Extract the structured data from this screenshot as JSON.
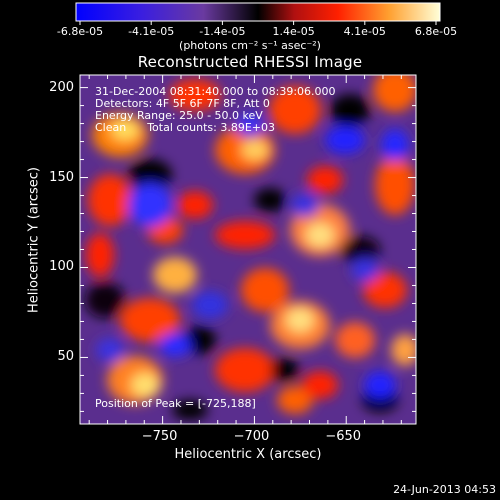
{
  "colorbar": {
    "ticks": [
      "-6.8e-05",
      "-4.1e-05",
      "-1.4e-05",
      "1.4e-05",
      "4.1e-05",
      "6.8e-05"
    ],
    "label": "(photons cm⁻² s⁻¹ asec⁻²)",
    "min": -6.8e-05,
    "max": 6.8e-05
  },
  "chart_data": {
    "type": "heatmap",
    "title": "Reconstructed RHESSI Image",
    "xlabel": "Heliocentric X (arcsec)",
    "ylabel": "Heliocentric Y (arcsec)",
    "xlim": [
      -795,
      -612
    ],
    "ylim": [
      13,
      207
    ],
    "xticks": [
      -750,
      -700,
      -650
    ],
    "yticks": [
      50,
      100,
      150,
      200
    ],
    "info_lines": [
      "31-Dec-2004 08:31:40.000 to 08:39:06.000",
      "Detectors: 4F 5F 6F 7F 8F, Att 0",
      "Energy Range: 25.0 - 50.0 keV",
      "Clean      Total counts: 3.89E+03"
    ],
    "peak_text": "Position of Peak = [-725,188]",
    "colors": {
      "low": "#0000ff",
      "mid_low": "#6a3aa0",
      "zero": "#000000",
      "mid_high": "#ff2000",
      "high": "#ffff80",
      "max": "#ffffff"
    }
  },
  "footer": {
    "date": "24-Jun-2013 04:53"
  }
}
